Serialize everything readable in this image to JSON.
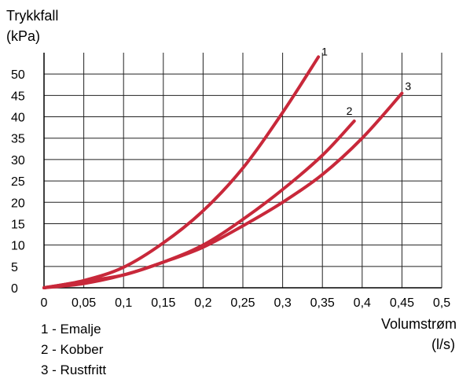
{
  "chart_data": {
    "type": "line",
    "ylabel_line1": "Trykkfall",
    "ylabel_line2": "(kPa)",
    "xlabel_line1": "Volumstrøm",
    "xlabel_line2": "(l/s)",
    "xlim": [
      0,
      0.5
    ],
    "ylim": [
      0,
      55
    ],
    "grid": true,
    "x_ticks": [
      0,
      0.05,
      0.1,
      0.15,
      0.2,
      0.25,
      0.3,
      0.35,
      0.4,
      0.45,
      0.5
    ],
    "x_tick_labels": [
      "0",
      "0,05",
      "0,1",
      "0,15",
      "0,2",
      "0,25",
      "0,3",
      "0,35",
      "0,4",
      "0,45",
      "0,5"
    ],
    "y_ticks": [
      0,
      5,
      10,
      15,
      20,
      25,
      30,
      35,
      40,
      45,
      50
    ],
    "y_tick_labels": [
      "0",
      "5",
      "10",
      "15",
      "20",
      "25",
      "30",
      "35",
      "40",
      "45",
      "50"
    ],
    "series_color": "#c8283a",
    "series": [
      {
        "name": "1",
        "x": [
          0,
          0.05,
          0.1,
          0.15,
          0.2,
          0.25,
          0.3,
          0.345
        ],
        "y": [
          0,
          1.7,
          4.8,
          10.5,
          18,
          28,
          41,
          54
        ]
      },
      {
        "name": "2",
        "x": [
          0,
          0.05,
          0.1,
          0.15,
          0.2,
          0.25,
          0.3,
          0.35,
          0.39
        ],
        "y": [
          0,
          1,
          3,
          6,
          10,
          16,
          23,
          31,
          39
        ]
      },
      {
        "name": "3",
        "x": [
          0,
          0.05,
          0.1,
          0.15,
          0.2,
          0.25,
          0.3,
          0.35,
          0.4,
          0.45
        ],
        "y": [
          0,
          1.5,
          3,
          6,
          9.5,
          14.5,
          20,
          26.5,
          35,
          45.5
        ]
      }
    ],
    "legend": [
      {
        "text": "1 - Emalje"
      },
      {
        "text": "2 - Kobber"
      },
      {
        "text": "3 - Rustfritt"
      }
    ]
  }
}
